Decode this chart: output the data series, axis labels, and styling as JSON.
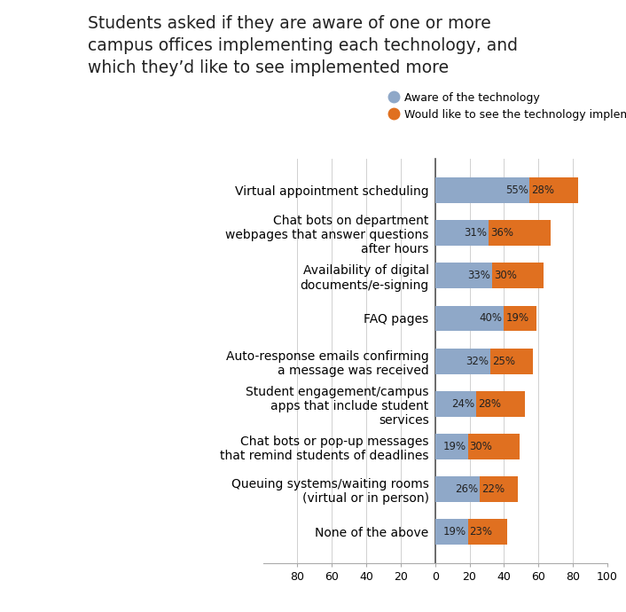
{
  "title": "Students asked if they are aware of one or more\ncampus offices implementing each technology, and\nwhich they’d like to see implemented more",
  "categories": [
    "Virtual appointment scheduling",
    "Chat bots on department\nwebpages that answer questions\nafter hours",
    "Availability of digital\ndocuments/e-signing",
    "FAQ pages",
    "Auto-response emails confirming\na message was received",
    "Student engagement/campus\napps that include student\nservices",
    "Chat bots or pop-up messages\nthat remind students of deadlines",
    "Queuing systems/waiting rooms\n(virtual or in person)",
    "None of the above"
  ],
  "aware": [
    55,
    31,
    33,
    40,
    32,
    24,
    19,
    26,
    19
  ],
  "see_more": [
    28,
    36,
    30,
    19,
    25,
    28,
    30,
    22,
    23
  ],
  "aware_color": "#8fa8c8",
  "see_more_color": "#e07020",
  "aware_label": "Aware of the technology",
  "see_more_label": "Would like to see the technology implemented more widely or better",
  "xlim": [
    -100,
    100
  ],
  "xtick_vals": [
    -80,
    -60,
    -40,
    -20,
    0,
    20,
    40,
    60,
    80,
    100
  ],
  "xtick_labels": [
    "80",
    "60",
    "40",
    "20",
    "0",
    "20",
    "40",
    "60",
    "80",
    "100"
  ],
  "background_color": "#ffffff",
  "bar_height": 0.6,
  "title_fontsize": 13.5,
  "label_fontsize": 8.5,
  "tick_fontsize": 9,
  "annotation_fontsize": 8.5
}
